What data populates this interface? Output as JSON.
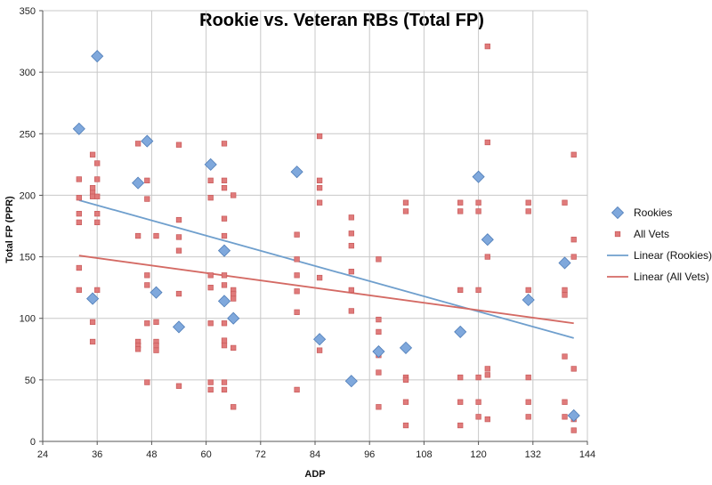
{
  "chart_data": {
    "type": "scatter",
    "title": "Rookie vs. Veteran RBs (Total FP)",
    "xlabel": "ADP",
    "ylabel": "Total FP (PPR)",
    "xlim": [
      24,
      144
    ],
    "ylim": [
      0,
      350
    ],
    "xticks": [
      24,
      36,
      48,
      60,
      72,
      84,
      96,
      108,
      120,
      132,
      144
    ],
    "yticks": [
      0,
      50,
      100,
      150,
      200,
      250,
      300,
      350
    ],
    "grid": true,
    "legend_position": "right",
    "series": [
      {
        "name": "Rookies",
        "marker": "diamond",
        "color": "#7fa8dc",
        "points": [
          [
            32,
            254
          ],
          [
            35,
            116
          ],
          [
            36,
            313
          ],
          [
            45,
            210
          ],
          [
            47,
            244
          ],
          [
            49,
            121
          ],
          [
            54,
            93
          ],
          [
            61,
            225
          ],
          [
            64,
            114
          ],
          [
            64,
            155
          ],
          [
            66,
            100
          ],
          [
            80,
            219
          ],
          [
            85,
            83
          ],
          [
            92,
            49
          ],
          [
            98,
            73
          ],
          [
            104,
            76
          ],
          [
            116,
            89
          ],
          [
            120,
            215
          ],
          [
            122,
            164
          ],
          [
            131,
            115
          ],
          [
            139,
            145
          ],
          [
            141,
            21
          ]
        ]
      },
      {
        "name": "All Vets",
        "marker": "square",
        "color": "#e07b7b",
        "points": [
          [
            32,
            213
          ],
          [
            32,
            198
          ],
          [
            32,
            185
          ],
          [
            32,
            178
          ],
          [
            32,
            141
          ],
          [
            32,
            123
          ],
          [
            35,
            233
          ],
          [
            35,
            206
          ],
          [
            35,
            202
          ],
          [
            35,
            199
          ],
          [
            35,
            97
          ],
          [
            35,
            81
          ],
          [
            36,
            226
          ],
          [
            36,
            213
          ],
          [
            36,
            199
          ],
          [
            36,
            185
          ],
          [
            36,
            178
          ],
          [
            36,
            123
          ],
          [
            45,
            242
          ],
          [
            45,
            167
          ],
          [
            45,
            81
          ],
          [
            45,
            78
          ],
          [
            45,
            75
          ],
          [
            47,
            212
          ],
          [
            47,
            197
          ],
          [
            47,
            135
          ],
          [
            47,
            127
          ],
          [
            47,
            96
          ],
          [
            47,
            48
          ],
          [
            49,
            167
          ],
          [
            49,
            97
          ],
          [
            49,
            81
          ],
          [
            49,
            78
          ],
          [
            49,
            74
          ],
          [
            54,
            241
          ],
          [
            54,
            180
          ],
          [
            54,
            166
          ],
          [
            54,
            155
          ],
          [
            54,
            120
          ],
          [
            54,
            45
          ],
          [
            61,
            212
          ],
          [
            61,
            198
          ],
          [
            61,
            135
          ],
          [
            61,
            125
          ],
          [
            61,
            96
          ],
          [
            61,
            48
          ],
          [
            61,
            42
          ],
          [
            64,
            242
          ],
          [
            64,
            212
          ],
          [
            64,
            206
          ],
          [
            64,
            181
          ],
          [
            64,
            167
          ],
          [
            64,
            135
          ],
          [
            64,
            127
          ],
          [
            64,
            96
          ],
          [
            64,
            82
          ],
          [
            64,
            78
          ],
          [
            64,
            48
          ],
          [
            64,
            42
          ],
          [
            66,
            200
          ],
          [
            66,
            123
          ],
          [
            66,
            120
          ],
          [
            66,
            116
          ],
          [
            66,
            76
          ],
          [
            66,
            28
          ],
          [
            80,
            168
          ],
          [
            80,
            148
          ],
          [
            80,
            135
          ],
          [
            80,
            122
          ],
          [
            80,
            105
          ],
          [
            80,
            42
          ],
          [
            85,
            248
          ],
          [
            85,
            212
          ],
          [
            85,
            206
          ],
          [
            85,
            194
          ],
          [
            85,
            133
          ],
          [
            85,
            74
          ],
          [
            92,
            182
          ],
          [
            92,
            169
          ],
          [
            92,
            159
          ],
          [
            92,
            138
          ],
          [
            92,
            123
          ],
          [
            92,
            106
          ],
          [
            98,
            148
          ],
          [
            98,
            99
          ],
          [
            98,
            89
          ],
          [
            98,
            70
          ],
          [
            98,
            56
          ],
          [
            98,
            28
          ],
          [
            104,
            194
          ],
          [
            104,
            187
          ],
          [
            104,
            52
          ],
          [
            104,
            50
          ],
          [
            104,
            32
          ],
          [
            104,
            13
          ],
          [
            116,
            194
          ],
          [
            116,
            187
          ],
          [
            116,
            123
          ],
          [
            116,
            52
          ],
          [
            116,
            32
          ],
          [
            116,
            13
          ],
          [
            120,
            194
          ],
          [
            120,
            187
          ],
          [
            120,
            123
          ],
          [
            120,
            52
          ],
          [
            120,
            32
          ],
          [
            120,
            20
          ],
          [
            122,
            321
          ],
          [
            122,
            243
          ],
          [
            122,
            150
          ],
          [
            122,
            59
          ],
          [
            122,
            54
          ],
          [
            122,
            18
          ],
          [
            131,
            194
          ],
          [
            131,
            187
          ],
          [
            131,
            123
          ],
          [
            131,
            52
          ],
          [
            131,
            32
          ],
          [
            131,
            20
          ],
          [
            139,
            194
          ],
          [
            139,
            123
          ],
          [
            139,
            119
          ],
          [
            139,
            69
          ],
          [
            139,
            32
          ],
          [
            139,
            20
          ],
          [
            141,
            233
          ],
          [
            141,
            164
          ],
          [
            141,
            150
          ],
          [
            141,
            59
          ],
          [
            141,
            18
          ],
          [
            141,
            9
          ]
        ]
      }
    ],
    "trendlines": [
      {
        "name": "Linear (Rookies)",
        "color": "#6f9fcd",
        "x": [
          32,
          141
        ],
        "y": [
          196,
          84
        ]
      },
      {
        "name": "Linear (All Vets)",
        "color": "#d46a64",
        "x": [
          32,
          141
        ],
        "y": [
          151,
          96
        ]
      }
    ]
  }
}
